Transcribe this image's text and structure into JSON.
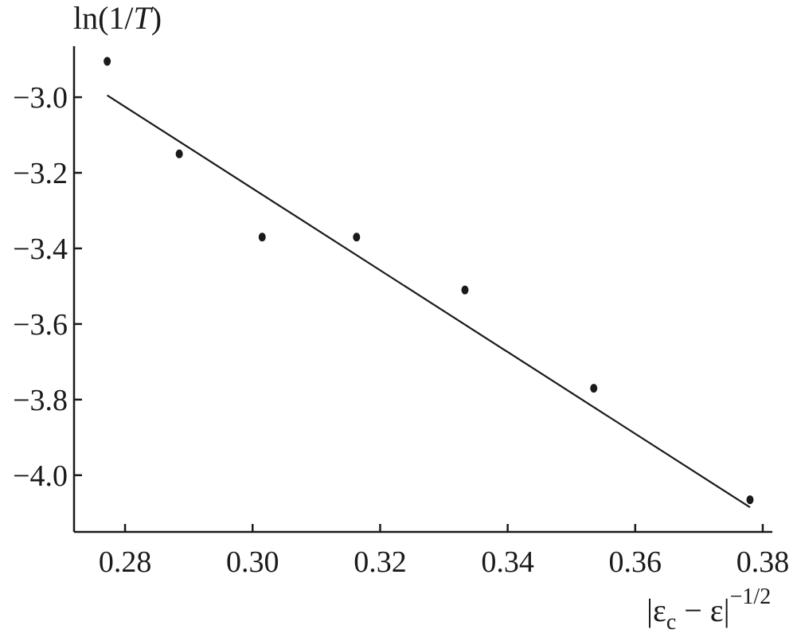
{
  "chart_data": {
    "type": "scatter",
    "title": "",
    "ylabel": "ln(1/T)",
    "xlabel": "|εc − ε|−1/2",
    "xlim": [
      0.272,
      0.3815
    ],
    "ylim": [
      -4.15,
      -2.865
    ],
    "x_ticks": [
      0.28,
      0.3,
      0.32,
      0.34,
      0.36,
      0.38
    ],
    "x_tick_labels": [
      "0.28",
      "0.30",
      "0.32",
      "0.34",
      "0.36",
      "0.38"
    ],
    "y_ticks": [
      -3.0,
      -3.2,
      -3.4,
      -3.6,
      -3.8,
      -4.0
    ],
    "y_tick_labels": [
      "−3.0",
      "−3.2",
      "−3.4",
      "−3.6",
      "−3.8",
      "−4.0"
    ],
    "grid": false,
    "series": [
      {
        "kind": "points",
        "x": [
          0.2772,
          0.2885,
          0.3015,
          0.3163,
          0.3333,
          0.3535,
          0.378
        ],
        "y": [
          -2.905,
          -3.15,
          -3.37,
          -3.37,
          -3.51,
          -3.77,
          -4.065
        ]
      },
      {
        "kind": "fit-line",
        "x": [
          0.2772,
          0.378
        ],
        "y": [
          -2.995,
          -4.085
        ]
      }
    ],
    "colors": {
      "ink": "#1a1a1a"
    }
  }
}
